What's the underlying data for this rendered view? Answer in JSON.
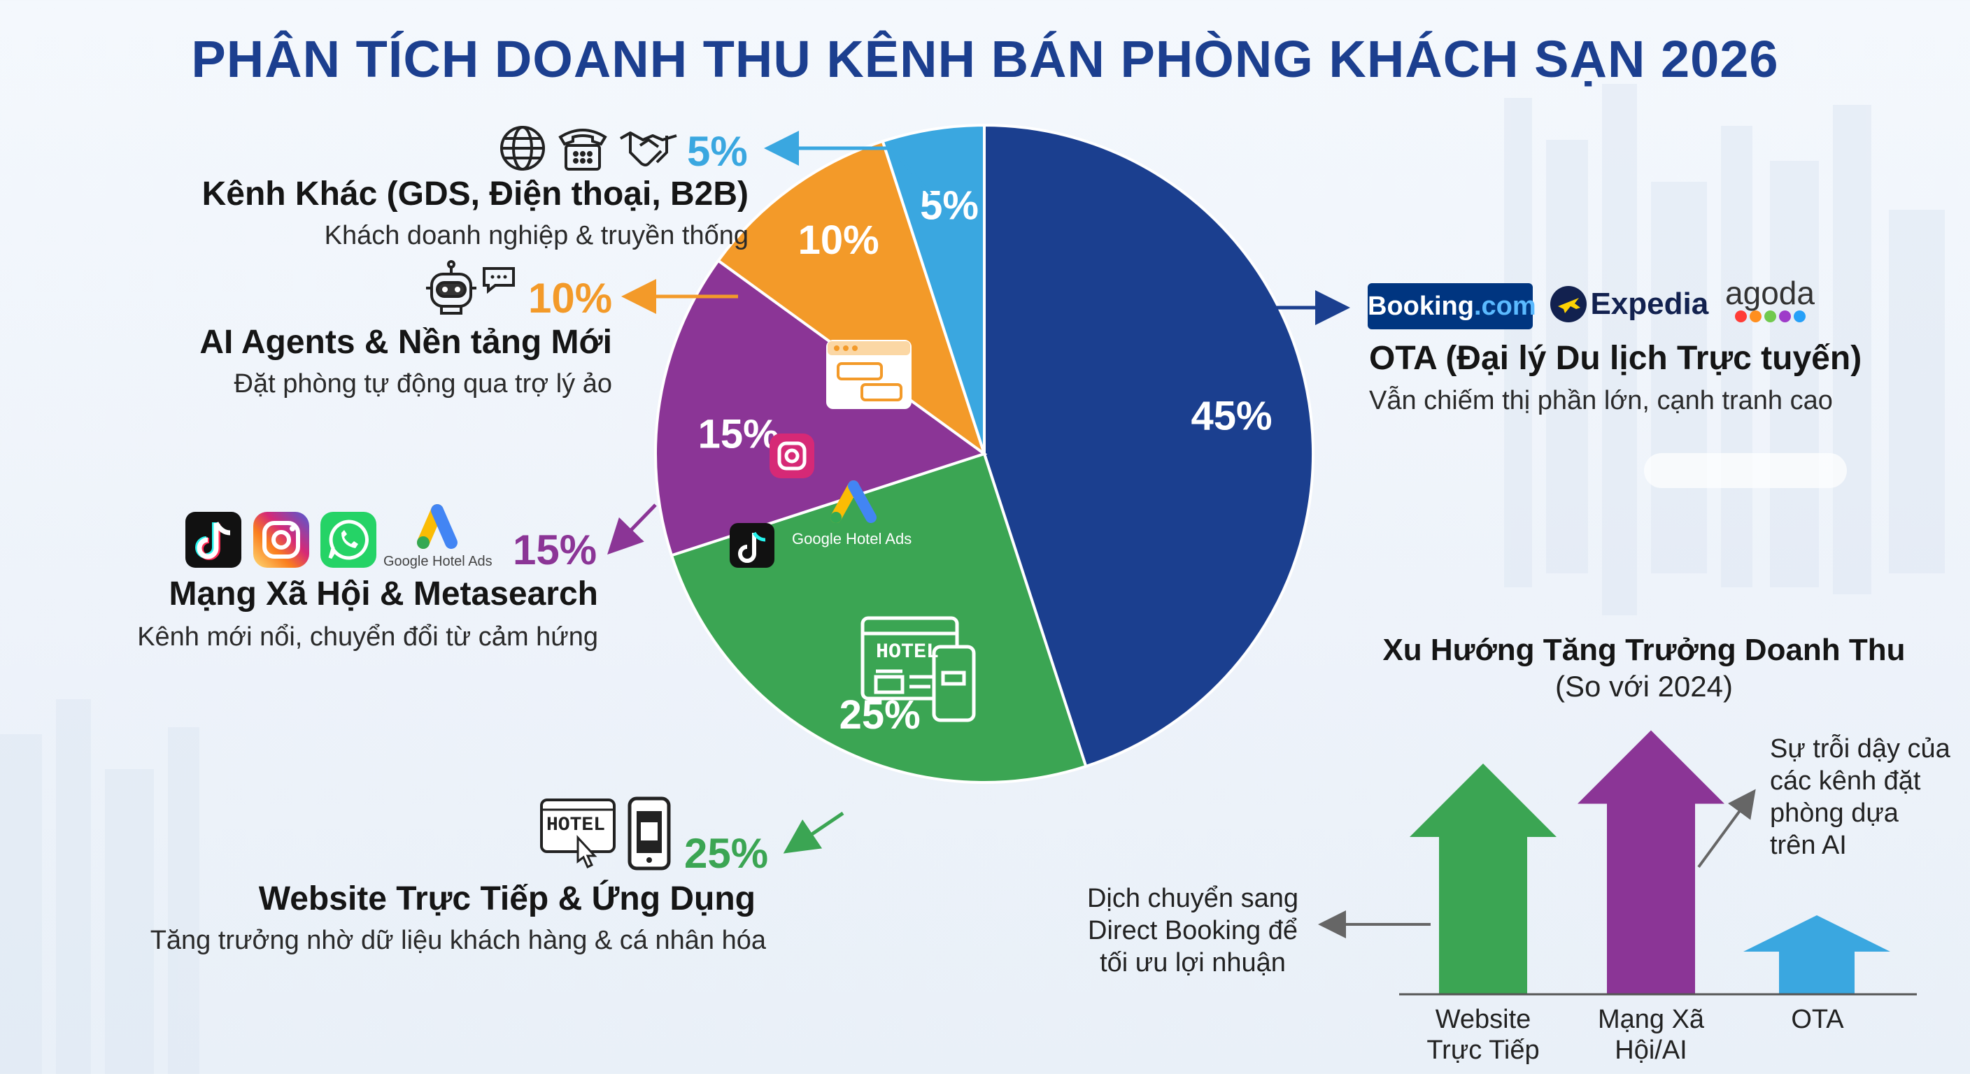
{
  "title": "PHÂN TÍCH DOANH THU KÊNH BÁN PHÒNG KHÁCH SẠN 2026",
  "chart_data": [
    {
      "type": "pie",
      "title": "PHÂN TÍCH DOANH THU KÊNH BÁN PHÒNG KHÁCH SẠN 2026",
      "slices": [
        {
          "label": "OTA (Đại lý Du lịch Trực tuyến)",
          "value": 45,
          "display": "45%",
          "color": "#1b3f8f"
        },
        {
          "label": "Website Trực Tiếp & Ứng Dụng",
          "value": 25,
          "display": "25%",
          "color": "#3ba553"
        },
        {
          "label": "Mạng Xã Hội & Metasearch",
          "value": 15,
          "display": "15%",
          "color": "#8b3596"
        },
        {
          "label": "AI Agents & Nền tảng Mới",
          "value": 10,
          "display": "10%",
          "color": "#f39a29"
        },
        {
          "label": "Kênh Khác (GDS, Điện thoại, B2B)",
          "value": 5,
          "display": "5%",
          "color": "#3aa7e0"
        }
      ]
    },
    {
      "type": "bar",
      "title": "Xu Hướng Tăng Trưởng Doanh Thu",
      "subtitle": "(So với 2024)",
      "categories": [
        "Website Trực Tiếp",
        "Mạng Xã Hội/AI",
        "OTA"
      ],
      "values": [
        3,
        3.5,
        1
      ],
      "colors": [
        "#3ba553",
        "#8b3596",
        "#3aa7e0"
      ]
    }
  ],
  "channels": {
    "ota": {
      "pct": "45%",
      "head": "OTA (Đại lý Du lịch Trực tuyến)",
      "sub": "Vẫn chiếm thị phần lớn, cạnh tranh cao",
      "logos": {
        "booking": "Booking",
        "booking_dot": ".com",
        "expedia": "Expedia",
        "agoda": "agoda"
      }
    },
    "website": {
      "pct": "25%",
      "head": "Website Trực Tiếp & Ứng Dụng",
      "sub": "Tăng trưởng nhờ dữ liệu khách hàng & cá nhân hóa",
      "hotel_word": "HOTEL"
    },
    "social": {
      "pct": "15%",
      "head": "Mạng Xã Hội & Metasearch",
      "sub": "Kênh mới nổi, chuyển đổi từ cảm hứng",
      "gads": "Google Hotel Ads"
    },
    "ai": {
      "pct": "10%",
      "head": "AI Agents & Nền tảng Mới",
      "sub": "Đặt phòng tự động qua trợ lý ảo"
    },
    "other": {
      "pct": "5%",
      "head": "Kênh Khác (GDS, Điện thoại, B2B)",
      "sub": "Khách doanh nghiệp & truyền thống"
    }
  },
  "trend": {
    "title": "Xu Hướng Tăng Trưởng Doanh Thu",
    "subtitle": "(So với 2024)",
    "labels": [
      [
        "Website",
        "Trực Tiếp"
      ],
      [
        "Mạng Xã",
        "Hội/AI"
      ],
      [
        "OTA"
      ]
    ],
    "note_left": [
      "Dịch chuyển sang",
      "Direct Booking để",
      "tối ưu lợi nhuận"
    ],
    "note_right": [
      "Sự trỗi dậy của",
      "các kênh đặt",
      "phòng dựa",
      "trên AI"
    ]
  },
  "icons": [
    "globe-icon",
    "telephone-icon",
    "handshake-icon",
    "robot-icon",
    "chat-bubble-icon",
    "tiktok-icon",
    "instagram-icon",
    "whatsapp-icon",
    "google-ads-icon",
    "hotel-web-icon",
    "smartphone-icon"
  ]
}
